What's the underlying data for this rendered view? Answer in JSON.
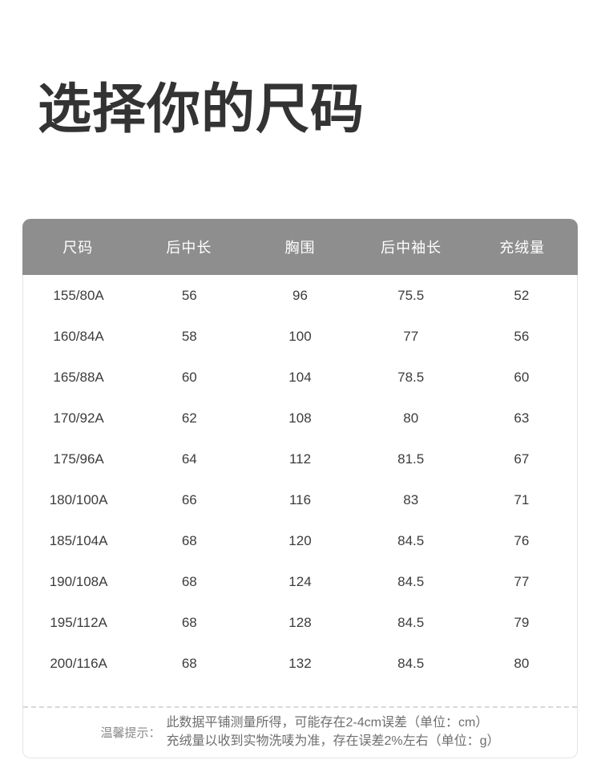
{
  "page": {
    "title": "选择你的尺码"
  },
  "size_table": {
    "columns": [
      "尺码",
      "后中长",
      "胸围",
      "后中袖长",
      "充绒量"
    ],
    "rows": [
      [
        "155/80A",
        "56",
        "96",
        "75.5",
        "52"
      ],
      [
        "160/84A",
        "58",
        "100",
        "77",
        "56"
      ],
      [
        "165/88A",
        "60",
        "104",
        "78.5",
        "60"
      ],
      [
        "170/92A",
        "62",
        "108",
        "80",
        "63"
      ],
      [
        "175/96A",
        "64",
        "112",
        "81.5",
        "67"
      ],
      [
        "180/100A",
        "66",
        "116",
        "83",
        "71"
      ],
      [
        "185/104A",
        "68",
        "120",
        "84.5",
        "76"
      ],
      [
        "190/108A",
        "68",
        "124",
        "84.5",
        "77"
      ],
      [
        "195/112A",
        "68",
        "128",
        "84.5",
        "79"
      ],
      [
        "200/116A",
        "68",
        "132",
        "84.5",
        "80"
      ]
    ]
  },
  "notice": {
    "label": "温馨提示：",
    "line1": "此数据平铺测量所得，可能存在2-4cm误差（单位：cm）",
    "line2": "充绒量以收到实物洗唛为准，存在误差2%左右（单位：g）"
  },
  "colors": {
    "header_bg": "#8e8e8e",
    "header_text": "#ffffff",
    "title_text": "#333333",
    "body_text": "#3c3c3c",
    "card_border": "#e4e4e4",
    "divider": "#d8d8d8",
    "notice_text": "#6e6e6e"
  }
}
